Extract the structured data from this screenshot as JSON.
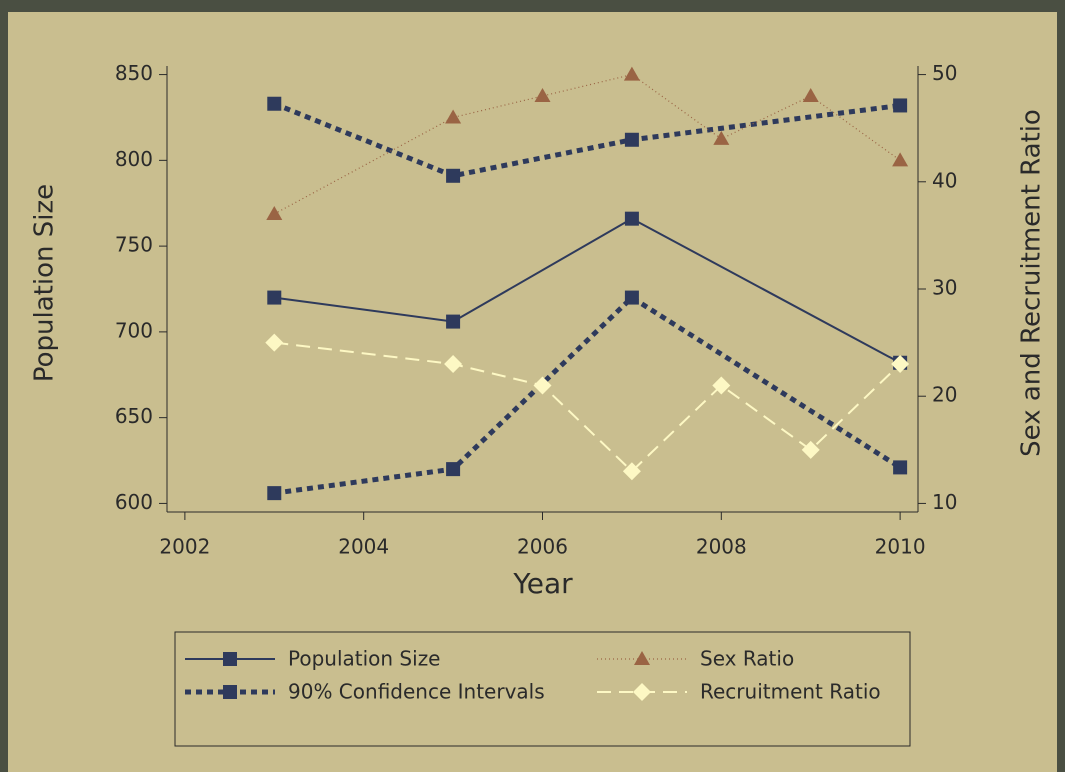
{
  "chart_data": {
    "type": "line",
    "x_label": "Year",
    "y_label": "Population Size",
    "y2_label": "Sex and Recruitment Ratio",
    "xlim": [
      2001.8,
      2010.2
    ],
    "xticks": [
      2002,
      2004,
      2006,
      2008,
      2010
    ],
    "ylim": [
      595,
      855
    ],
    "yticks": [
      600,
      650,
      700,
      750,
      800,
      850
    ],
    "y2lim": [
      9.2,
      50.8
    ],
    "y2ticks": [
      10,
      20,
      30,
      40,
      50
    ],
    "series": [
      {
        "name": "Population Size",
        "color": "#2e3a5c",
        "line_style": "solid",
        "marker": "square",
        "x": [
          2003,
          2005,
          2007,
          2010
        ],
        "values": [
          720,
          706,
          766,
          682
        ]
      },
      {
        "name": "90% Confidence Intervals",
        "color": "#2e3a5c",
        "line_style": "dot",
        "marker": "square",
        "x": [
          2003,
          2005,
          2007,
          2010
        ],
        "values": [
          833,
          791,
          812,
          832
        ],
        "lower": [
          606,
          620,
          720,
          621
        ]
      },
      {
        "name": "Sex Ratio",
        "color": "#9a6444",
        "line_style": "fine-dot",
        "marker": "triangle",
        "axis": "y2",
        "x": [
          2003,
          2005,
          2006,
          2007,
          2008,
          2009,
          2010
        ],
        "values": [
          37,
          46,
          48,
          50,
          44,
          48,
          42
        ]
      },
      {
        "name": "Recruitment Ratio",
        "color": "#fdf8c4",
        "line_style": "dash",
        "marker": "diamond",
        "axis": "y2",
        "x": [
          2003,
          2005,
          2006,
          2007,
          2008,
          2009,
          2010
        ],
        "values": [
          25,
          23,
          21,
          13,
          21,
          15,
          23
        ]
      }
    ]
  }
}
